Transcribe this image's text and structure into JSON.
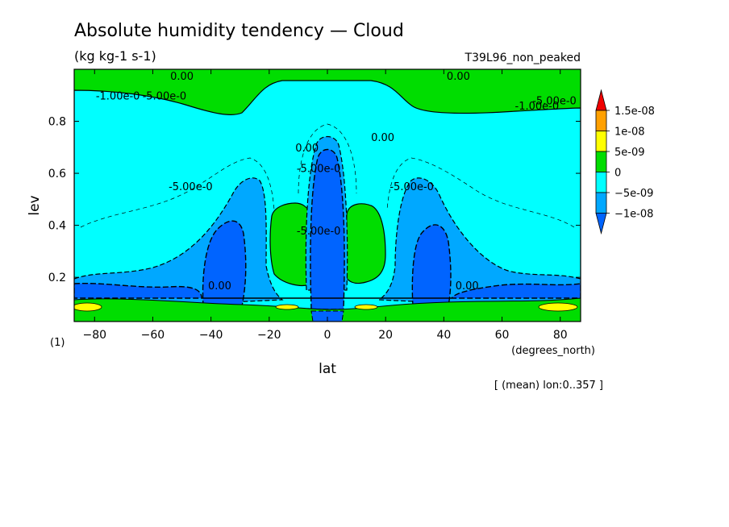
{
  "chart_data": {
    "type": "heatmap",
    "title": "Absolute humidity tendency — Cloud",
    "subtitle": "(kg kg-1 s-1)",
    "experiment": "T39L96_non_peaked",
    "xlabel": "lat",
    "xunit": "(degrees_north)",
    "ylabel": "lev",
    "yunit": "(1)",
    "averaging_note": "[ (mean) lon:0..357 ]",
    "xlim": [
      -87,
      87
    ],
    "ylim": [
      1.0,
      0.03
    ],
    "x_ticks": [
      -80,
      -60,
      -40,
      -20,
      0,
      20,
      40,
      60,
      80
    ],
    "y_ticks": [
      0.2,
      0.4,
      0.6,
      0.8
    ],
    "x_tick_labels": [
      "−80",
      "−60",
      "−40",
      "−20",
      "0",
      "20",
      "40",
      "60",
      "80"
    ],
    "y_tick_labels": [
      "0.2",
      "0.4",
      "0.6",
      "0.8"
    ],
    "colorbar": {
      "labels": [
        "1.5e-08",
        "1e-08",
        "5e-09",
        "0",
        "−5e-09",
        "−1e-08"
      ],
      "levels": [
        1.5e-08,
        1e-08,
        5e-09,
        0,
        -5e-09,
        -1e-08
      ],
      "colors": [
        "#f00000",
        "#ffa000",
        "#ffff00",
        "#00dd00",
        "#00ffff",
        "#00a8ff",
        "#0064ff"
      ]
    },
    "contour_labels": [
      {
        "text": "0.00",
        "lat": -37,
        "lev": 0.17
      },
      {
        "text": "0.00",
        "lat": 48,
        "lev": 0.17
      },
      {
        "text": "-5.00e-0",
        "lat": -47,
        "lev": 0.55
      },
      {
        "text": "-5.00e-0",
        "lat": -3,
        "lev": 0.38
      },
      {
        "text": "-5.00e-0",
        "lat": -3,
        "lev": 0.62
      },
      {
        "text": "-5.00e-0",
        "lat": 29,
        "lev": 0.55
      },
      {
        "text": "0.00",
        "lat": -7,
        "lev": 0.7
      },
      {
        "text": "0.00",
        "lat": 19,
        "lev": 0.74
      },
      {
        "text": "-1.00e-0",
        "lat": -72,
        "lev": 0.9
      },
      {
        "text": "-5.00e-0",
        "lat": -56,
        "lev": 0.9
      },
      {
        "text": "-1.00e-0",
        "lat": 72,
        "lev": 0.86
      },
      {
        "text": "-5.00e-0",
        "lat": 78,
        "lev": 0.88
      },
      {
        "text": "0.00",
        "lat": -50,
        "lev": 0.975
      },
      {
        "text": "0.00",
        "lat": 45,
        "lev": 0.975
      }
    ]
  }
}
